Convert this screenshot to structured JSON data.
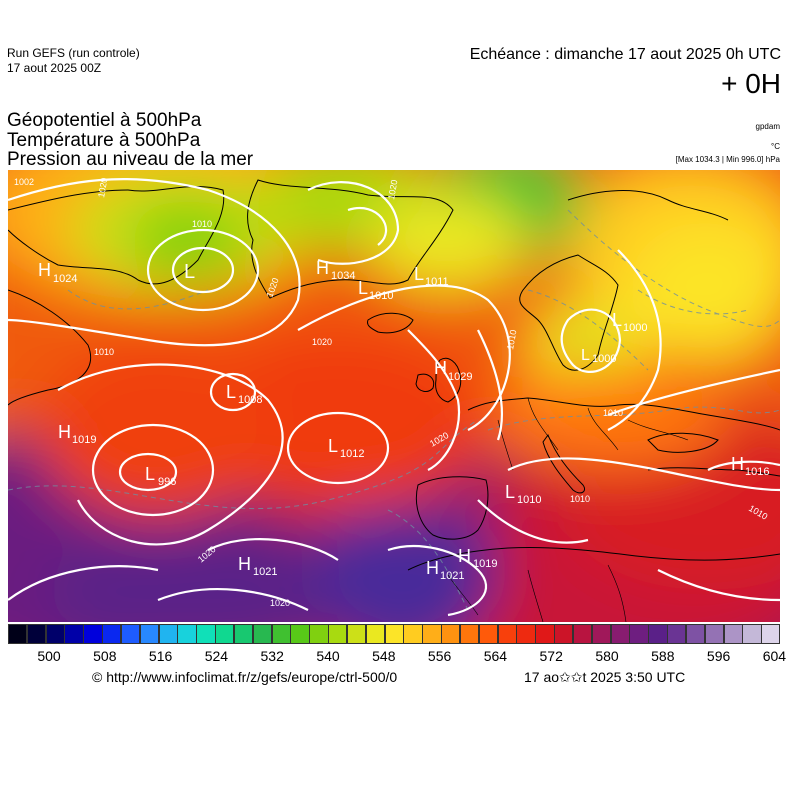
{
  "header": {
    "run_title": "Run GEFS (run controle)",
    "run_date": "17 aout 2025 00Z",
    "echeance": "Echéance : dimanche 17 aout 2025 0h UTC",
    "offset": "+ 0H",
    "title_line1": "Géopotentiel à 500hPa",
    "title_line2": "Température à 500hPa",
    "title_line3": "Pression au niveau de la mer",
    "unit_geo": "gpdam",
    "unit_temp": "°C",
    "minmax": "[Max 1034.3 | Min 996.0] hPa"
  },
  "pressure_centers": [
    {
      "type": "H",
      "value": "1024"
    },
    {
      "type": "L",
      "value": ""
    },
    {
      "type": "H",
      "value": "1034"
    },
    {
      "type": "L",
      "value": "1011"
    },
    {
      "type": "L",
      "value": "1010"
    },
    {
      "type": "L",
      "value": "1000"
    },
    {
      "type": "L",
      "value": "1000"
    },
    {
      "type": "L",
      "value": "1008"
    },
    {
      "type": "H",
      "value": "1029"
    },
    {
      "type": "H",
      "value": "1019"
    },
    {
      "type": "L",
      "value": "1012"
    },
    {
      "type": "L",
      "value": "996"
    },
    {
      "type": "H",
      "value": "1016"
    },
    {
      "type": "L",
      "value": "1010"
    },
    {
      "type": "H",
      "value": "1019"
    },
    {
      "type": "H",
      "value": "1021"
    },
    {
      "type": "H",
      "value": "1021"
    }
  ],
  "isobar_labels": [
    {
      "text": "1002"
    },
    {
      "text": "1020"
    },
    {
      "text": "1010"
    },
    {
      "text": "1020"
    },
    {
      "text": "1010"
    },
    {
      "text": "1020"
    },
    {
      "text": "1020"
    },
    {
      "text": "1010"
    },
    {
      "text": "1010"
    },
    {
      "text": "1010"
    },
    {
      "text": "1020"
    },
    {
      "text": "1020"
    },
    {
      "text": "1010"
    },
    {
      "text": "1020"
    }
  ],
  "colorscale": {
    "labels": [
      "500",
      "508",
      "516",
      "524",
      "532",
      "540",
      "548",
      "556",
      "564",
      "572",
      "580",
      "588",
      "596",
      "604"
    ],
    "colors": [
      "#000018",
      "#00003a",
      "#00006a",
      "#0000a8",
      "#0000dc",
      "#0a28f0",
      "#1e5cff",
      "#2888ff",
      "#20b4f0",
      "#18d2dc",
      "#10e0b8",
      "#10d890",
      "#18c870",
      "#28b850",
      "#40c030",
      "#58c818",
      "#80d010",
      "#a8da10",
      "#cce018",
      "#eae820",
      "#fce428",
      "#ffcc20",
      "#ffae18",
      "#ff9210",
      "#ff760c",
      "#ff5a0a",
      "#f8400c",
      "#ee2a10",
      "#e01818",
      "#cc1428",
      "#b81440",
      "#a0185a",
      "#881c70",
      "#6e1e80",
      "#5a2088",
      "#6a3494",
      "#7e52a4",
      "#9472b4",
      "#ac94c6",
      "#c4b8d8",
      "#ddd4ea"
    ]
  },
  "footer": {
    "url": "© http://www.infoclimat.fr/z/gefs/europe/ctrl-500/0",
    "generated": "17 ao✩✩t 2025  3:50 UTC"
  },
  "colors": {
    "isobar": "#ffffff",
    "coastline": "#000000",
    "isotherm": "#7090a0"
  }
}
